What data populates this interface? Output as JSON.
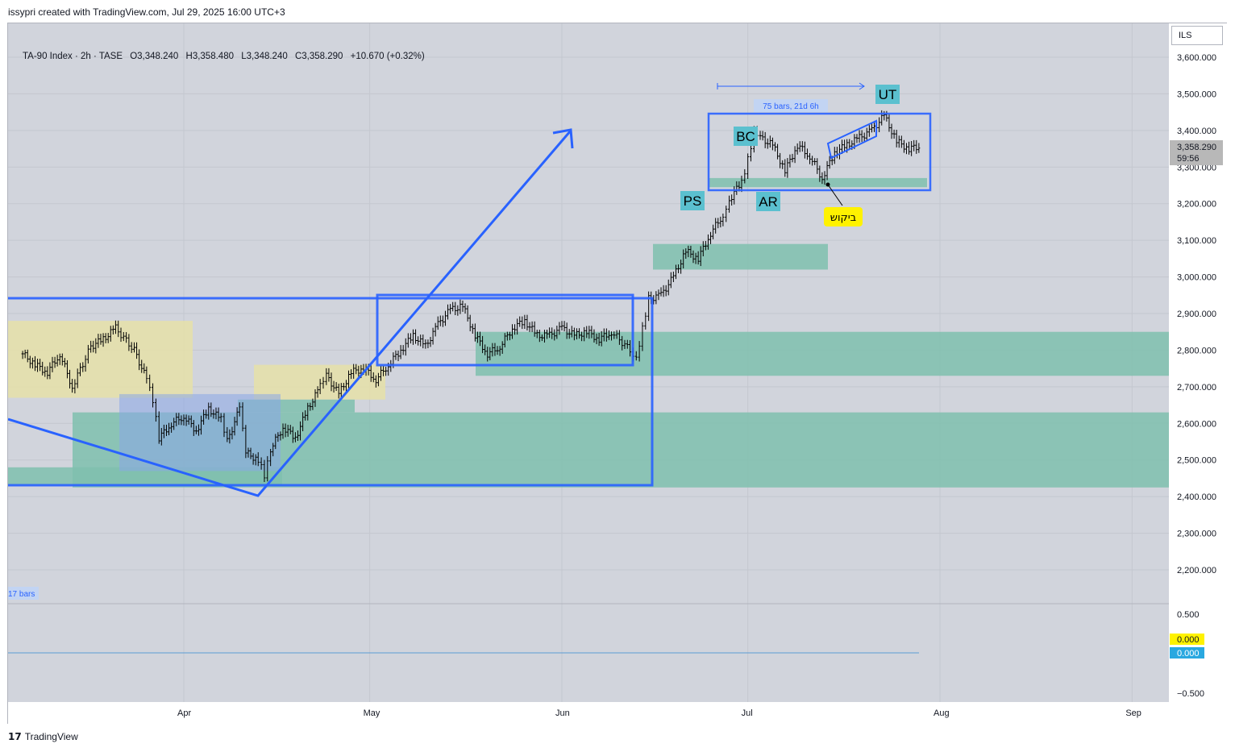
{
  "header": {
    "attribution": "issypri created with TradingView.com, Jul 29, 2025 16:00 UTC+3"
  },
  "legend": {
    "symbol": "TA-90 Index · 2h · TASE",
    "open": "O3,348.240",
    "high": "H3,358.480",
    "low": "L3,348.240",
    "close": "C3,358.290",
    "change": "+10.670 (+0.32%)"
  },
  "currency_button": "ILS",
  "price_marker": {
    "value": "3,358.290",
    "countdown": "59:56"
  },
  "footer": {
    "logo_text": "TradingView"
  },
  "colors": {
    "background": "#d1d4dc",
    "drawing_blue": "#2962ff",
    "zone_teal": "#7fbfae",
    "zone_yellow": "#e6e0a8",
    "label_cyan": "#5bc0cf",
    "note_yellow": "#fff200",
    "oscillator_line": "#5b9bd5"
  },
  "chart_data": {
    "type": "line",
    "symbol": "TA-90 Index",
    "interval": "2h",
    "exchange": "TASE",
    "price_axis": {
      "ticks": [
        "3,600.000",
        "3,500.000",
        "3,400.000",
        "3,300.000",
        "3,200.000",
        "3,100.000",
        "3,000.000",
        "2,900.000",
        "2,800.000",
        "2,700.000",
        "2,600.000",
        "2,500.000",
        "2,400.000",
        "2,300.000",
        "2,200.000"
      ],
      "range": [
        2100,
        3650
      ]
    },
    "time_axis": {
      "ticks": [
        "Apr",
        "May",
        "Jun",
        "Jul",
        "Aug",
        "Sep"
      ]
    },
    "oscillator_axis": {
      "ticks": [
        "0.500",
        "−0.500"
      ],
      "value_yellow": "0.000",
      "value_blue": "0.000"
    },
    "series": [
      {
        "points": [
          [
            "Mar 6",
            2790
          ],
          [
            "Mar 8",
            2760
          ],
          [
            "Mar 10",
            2740
          ],
          [
            "Mar 12",
            2790
          ],
          [
            "Mar 14",
            2700
          ],
          [
            "Mar 17",
            2810
          ],
          [
            "Mar 19",
            2830
          ],
          [
            "Mar 21",
            2860
          ],
          [
            "Mar 24",
            2800
          ],
          [
            "Mar 26",
            2720
          ],
          [
            "Mar 27",
            2660
          ],
          [
            "Mar 28",
            2560
          ],
          [
            "Mar 30",
            2600
          ],
          [
            "Apr 1",
            2620
          ],
          [
            "Apr 3",
            2580
          ],
          [
            "Apr 5",
            2640
          ],
          [
            "Apr 7",
            2610
          ],
          [
            "Apr 8",
            2550
          ],
          [
            "Apr 10",
            2640
          ],
          [
            "Apr 11",
            2520
          ],
          [
            "Apr 13",
            2500
          ],
          [
            "Apr 14",
            2460
          ],
          [
            "Apr 15",
            2530
          ],
          [
            "Apr 17",
            2590
          ],
          [
            "Apr 19",
            2560
          ],
          [
            "Apr 21",
            2640
          ],
          [
            "Apr 23",
            2700
          ],
          [
            "Apr 24",
            2730
          ],
          [
            "Apr 26",
            2680
          ],
          [
            "Apr 28",
            2740
          ],
          [
            "Apr 30",
            2750
          ],
          [
            "May 2",
            2720
          ],
          [
            "May 4",
            2760
          ],
          [
            "May 6",
            2800
          ],
          [
            "May 8",
            2840
          ],
          [
            "May 10",
            2810
          ],
          [
            "May 12",
            2870
          ],
          [
            "May 14",
            2910
          ],
          [
            "May 16",
            2920
          ],
          [
            "May 18",
            2840
          ],
          [
            "May 20",
            2790
          ],
          [
            "May 22",
            2810
          ],
          [
            "May 24",
            2860
          ],
          [
            "May 26",
            2880
          ],
          [
            "May 28",
            2840
          ],
          [
            "May 30",
            2840
          ],
          [
            "Jun 1",
            2860
          ],
          [
            "Jun 3",
            2840
          ],
          [
            "Jun 5",
            2850
          ],
          [
            "Jun 7",
            2830
          ],
          [
            "Jun 9",
            2850
          ],
          [
            "Jun 12",
            2800
          ],
          [
            "Jun 13",
            2780
          ],
          [
            "Jun 14",
            2860
          ],
          [
            "Jun 15",
            2940
          ],
          [
            "Jun 17",
            2950
          ],
          [
            "Jun 19",
            3000
          ],
          [
            "Jun 21",
            3070
          ],
          [
            "Jun 23",
            3050
          ],
          [
            "Jun 25",
            3120
          ],
          [
            "Jun 27",
            3170
          ],
          [
            "Jun 28",
            3210
          ],
          [
            "Jun 30",
            3260
          ],
          [
            "Jul 1",
            3320
          ],
          [
            "Jul 2",
            3390
          ],
          [
            "Jul 3",
            3380
          ],
          [
            "Jul 5",
            3360
          ],
          [
            "Jul 7",
            3290
          ],
          [
            "Jul 9",
            3360
          ],
          [
            "Jul 11",
            3330
          ],
          [
            "Jul 13",
            3270
          ],
          [
            "Jul 15",
            3340
          ],
          [
            "Jul 17",
            3360
          ],
          [
            "Jul 19",
            3380
          ],
          [
            "Jul 21",
            3400
          ],
          [
            "Jul 23",
            3440
          ],
          [
            "Jul 25",
            3370
          ],
          [
            "Jul 27",
            3350
          ],
          [
            "Jul 29",
            3358
          ]
        ]
      }
    ],
    "annotations": {
      "labels": [
        "PS",
        "BC",
        "AR",
        "UT"
      ],
      "note": "ביקוש",
      "measure_top": "75 bars, 21d 6h",
      "measure_bottom": "17 bars"
    },
    "grid": true
  }
}
